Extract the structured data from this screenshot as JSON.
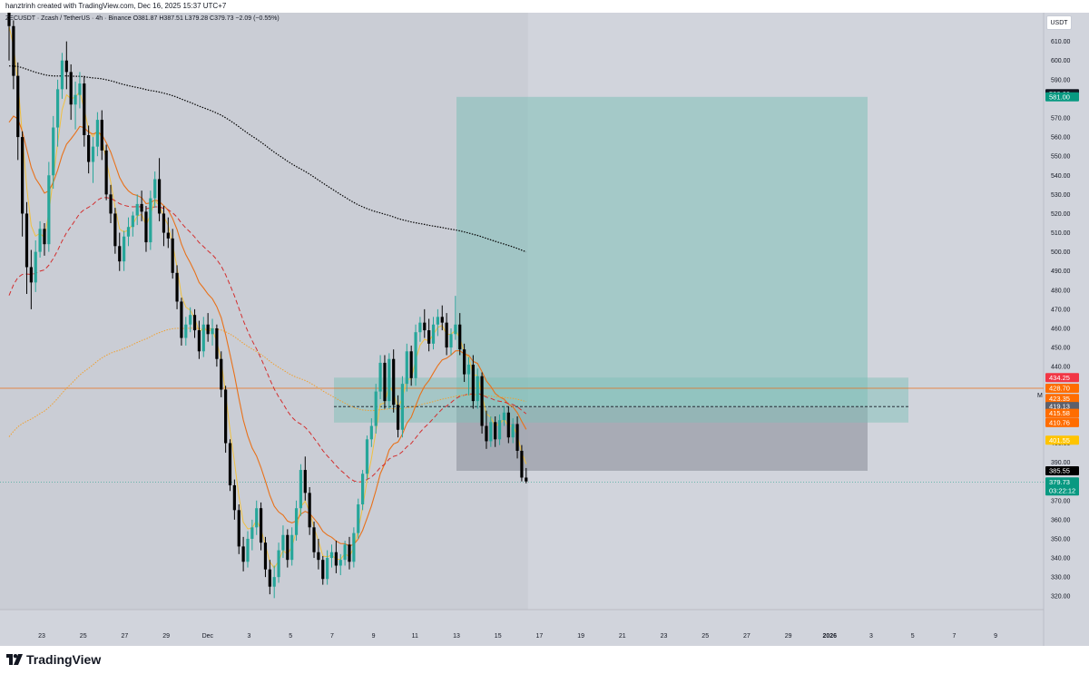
{
  "header": {
    "text": "hanztrinh created with TradingView.com, Dec 16, 2025 15:37 UTC+7",
    "symbol_line": "ZECUSDT · Zcash / TetherUS · 4h · Binance  O381.87 H387.51 L379.28 C379.73 −2.09 (−0.55%)"
  },
  "currency_button": "USDT",
  "brand": "TradingView",
  "right_marker": "M",
  "colors": {
    "background": "#d1d4dc",
    "up": "#26a69a",
    "down": "#000000",
    "ema_fast": "#f0c040",
    "ema_mid": "#e8711a",
    "ema_slow_dashed": "#d32f2f",
    "ema_dotted": "#f0a030",
    "ema_black_dotted": "#000000",
    "target_zone": "#7fbfb8",
    "stop_zone": "#9a9ea8"
  },
  "chart_data": {
    "type": "candlestick",
    "interval": "4h",
    "ylim": [
      313,
      625
    ],
    "y_ticks": [
      320,
      330,
      340,
      350,
      360,
      370,
      380,
      390,
      400,
      410,
      420,
      430,
      440,
      450,
      460,
      470,
      480,
      490,
      500,
      510,
      520,
      530,
      540,
      550,
      560,
      570,
      580,
      590,
      600,
      610,
      620
    ],
    "x_ticks": [
      "23",
      "25",
      "27",
      "29",
      "Dec",
      "3",
      "5",
      "7",
      "9",
      "11",
      "13",
      "15",
      "17",
      "19",
      "21",
      "23",
      "25",
      "27",
      "29",
      "2026",
      "3",
      "5",
      "7",
      "9"
    ],
    "candles": [
      [
        625,
        628,
        600,
        618
      ],
      [
        618,
        621,
        585,
        592
      ],
      [
        592,
        599,
        548,
        560
      ],
      [
        560,
        563,
        508,
        520
      ],
      [
        520,
        526,
        478,
        492
      ],
      [
        492,
        501,
        470,
        484
      ],
      [
        484,
        506,
        479,
        500
      ],
      [
        500,
        516,
        497,
        512
      ],
      [
        512,
        515,
        498,
        504
      ],
      [
        504,
        547,
        500,
        540
      ],
      [
        540,
        571,
        533,
        565
      ],
      [
        565,
        590,
        555,
        585
      ],
      [
        585,
        604,
        580,
        600
      ],
      [
        600,
        610,
        585,
        594
      ],
      [
        594,
        598,
        569,
        577
      ],
      [
        577,
        589,
        564,
        582
      ],
      [
        582,
        594,
        575,
        588
      ],
      [
        588,
        592,
        555,
        561
      ],
      [
        561,
        566,
        541,
        547
      ],
      [
        547,
        560,
        536,
        555
      ],
      [
        555,
        573,
        550,
        569
      ],
      [
        569,
        574,
        548,
        553
      ],
      [
        553,
        556,
        527,
        530
      ],
      [
        530,
        535,
        515,
        520
      ],
      [
        520,
        523,
        499,
        503
      ],
      [
        503,
        510,
        490,
        495
      ],
      [
        495,
        511,
        490,
        508
      ],
      [
        508,
        518,
        503,
        513
      ],
      [
        513,
        521,
        508,
        519
      ],
      [
        519,
        530,
        514,
        525
      ],
      [
        525,
        532,
        516,
        521
      ],
      [
        521,
        524,
        500,
        505
      ],
      [
        505,
        532,
        501,
        528
      ],
      [
        528,
        542,
        523,
        538
      ],
      [
        538,
        549,
        516,
        520
      ],
      [
        520,
        524,
        503,
        510
      ],
      [
        510,
        518,
        502,
        507
      ],
      [
        507,
        512,
        486,
        489
      ],
      [
        489,
        493,
        470,
        474
      ],
      [
        474,
        476,
        451,
        455
      ],
      [
        455,
        466,
        451,
        462
      ],
      [
        462,
        471,
        458,
        467
      ],
      [
        467,
        470,
        455,
        459
      ],
      [
        459,
        464,
        444,
        448
      ],
      [
        448,
        466,
        445,
        462
      ],
      [
        462,
        468,
        453,
        457
      ],
      [
        457,
        465,
        451,
        460
      ],
      [
        460,
        462,
        440,
        444
      ],
      [
        444,
        448,
        424,
        428
      ],
      [
        428,
        430,
        395,
        400
      ],
      [
        400,
        402,
        375,
        378
      ],
      [
        378,
        381,
        360,
        365
      ],
      [
        365,
        368,
        342,
        346
      ],
      [
        346,
        351,
        333,
        338
      ],
      [
        338,
        354,
        335,
        350
      ],
      [
        350,
        360,
        344,
        356
      ],
      [
        356,
        370,
        352,
        366
      ],
      [
        366,
        369,
        344,
        348
      ],
      [
        348,
        351,
        330,
        334
      ],
      [
        334,
        339,
        321,
        325
      ],
      [
        325,
        336,
        319,
        330
      ],
      [
        330,
        348,
        327,
        344
      ],
      [
        344,
        357,
        340,
        352
      ],
      [
        352,
        355,
        335,
        339
      ],
      [
        339,
        356,
        336,
        352
      ],
      [
        352,
        370,
        349,
        366
      ],
      [
        366,
        389,
        362,
        386
      ],
      [
        386,
        393,
        370,
        374
      ],
      [
        374,
        377,
        352,
        356
      ],
      [
        356,
        359,
        340,
        343
      ],
      [
        343,
        350,
        334,
        339
      ],
      [
        339,
        341,
        326,
        329
      ],
      [
        329,
        344,
        326,
        340
      ],
      [
        340,
        347,
        335,
        343
      ],
      [
        343,
        349,
        332,
        336
      ],
      [
        336,
        342,
        331,
        339
      ],
      [
        339,
        349,
        336,
        347
      ],
      [
        347,
        351,
        334,
        338
      ],
      [
        338,
        356,
        335,
        353
      ],
      [
        353,
        371,
        350,
        368
      ],
      [
        368,
        386,
        365,
        384
      ],
      [
        384,
        404,
        381,
        402
      ],
      [
        402,
        413,
        398,
        409
      ],
      [
        409,
        431,
        405,
        427
      ],
      [
        427,
        446,
        423,
        442
      ],
      [
        442,
        446,
        418,
        422
      ],
      [
        422,
        447,
        418,
        444
      ],
      [
        444,
        449,
        416,
        420
      ],
      [
        420,
        425,
        403,
        407
      ],
      [
        407,
        435,
        403,
        431
      ],
      [
        431,
        452,
        427,
        448
      ],
      [
        448,
        451,
        430,
        434
      ],
      [
        434,
        462,
        430,
        458
      ],
      [
        458,
        466,
        453,
        463
      ],
      [
        463,
        470,
        455,
        459
      ],
      [
        459,
        465,
        448,
        452
      ],
      [
        452,
        466,
        449,
        462
      ],
      [
        462,
        470,
        456,
        466
      ],
      [
        466,
        472,
        459,
        463
      ],
      [
        463,
        468,
        446,
        450
      ],
      [
        450,
        460,
        446,
        457
      ],
      [
        457,
        477,
        454,
        462
      ],
      [
        462,
        468,
        446,
        449
      ],
      [
        449,
        452,
        432,
        436
      ],
      [
        436,
        445,
        425,
        441
      ],
      [
        441,
        446,
        418,
        422
      ],
      [
        422,
        439,
        418,
        435
      ],
      [
        435,
        437,
        405,
        409
      ],
      [
        409,
        417,
        397,
        401
      ],
      [
        401,
        414,
        398,
        411
      ],
      [
        411,
        414,
        398,
        402
      ],
      [
        402,
        415,
        399,
        412
      ],
      [
        412,
        419,
        409,
        416
      ],
      [
        416,
        419,
        400,
        403
      ],
      [
        403,
        413,
        400,
        410
      ],
      [
        410,
        414,
        392,
        396
      ],
      [
        396,
        399,
        380,
        382
      ],
      [
        382,
        387,
        379,
        380
      ]
    ],
    "trade_setup": {
      "target": 581.0,
      "entry": 419.13,
      "stop": 385.55
    },
    "supply_zone": [
      410.76,
      434.25
    ],
    "price_tags": [
      {
        "value": 582.66,
        "label": "582.66",
        "color": "#131722"
      },
      {
        "value": 581.0,
        "label": "581.00",
        "color": "#089981"
      },
      {
        "value": 434.25,
        "label": "434.25",
        "color": "#f23645"
      },
      {
        "value": 428.7,
        "label": "428.70",
        "color": "#ff6d00"
      },
      {
        "value": 423.35,
        "label": "423.35",
        "color": "#ff6d00"
      },
      {
        "value": 419.13,
        "label": "419.13",
        "color": "#5d606b"
      },
      {
        "value": 415.58,
        "label": "415.58",
        "color": "#ff6d00"
      },
      {
        "value": 410.76,
        "label": "410.76",
        "color": "#ff6d00"
      },
      {
        "value": 401.55,
        "label": "401.55",
        "color": "#ffc400",
        "text_color": "#131722"
      },
      {
        "value": 385.55,
        "label": "385.55",
        "color": "#000000"
      },
      {
        "value": 379.73,
        "label": "379.73",
        "sub": "03:22:12",
        "color": "#089981"
      }
    ]
  }
}
